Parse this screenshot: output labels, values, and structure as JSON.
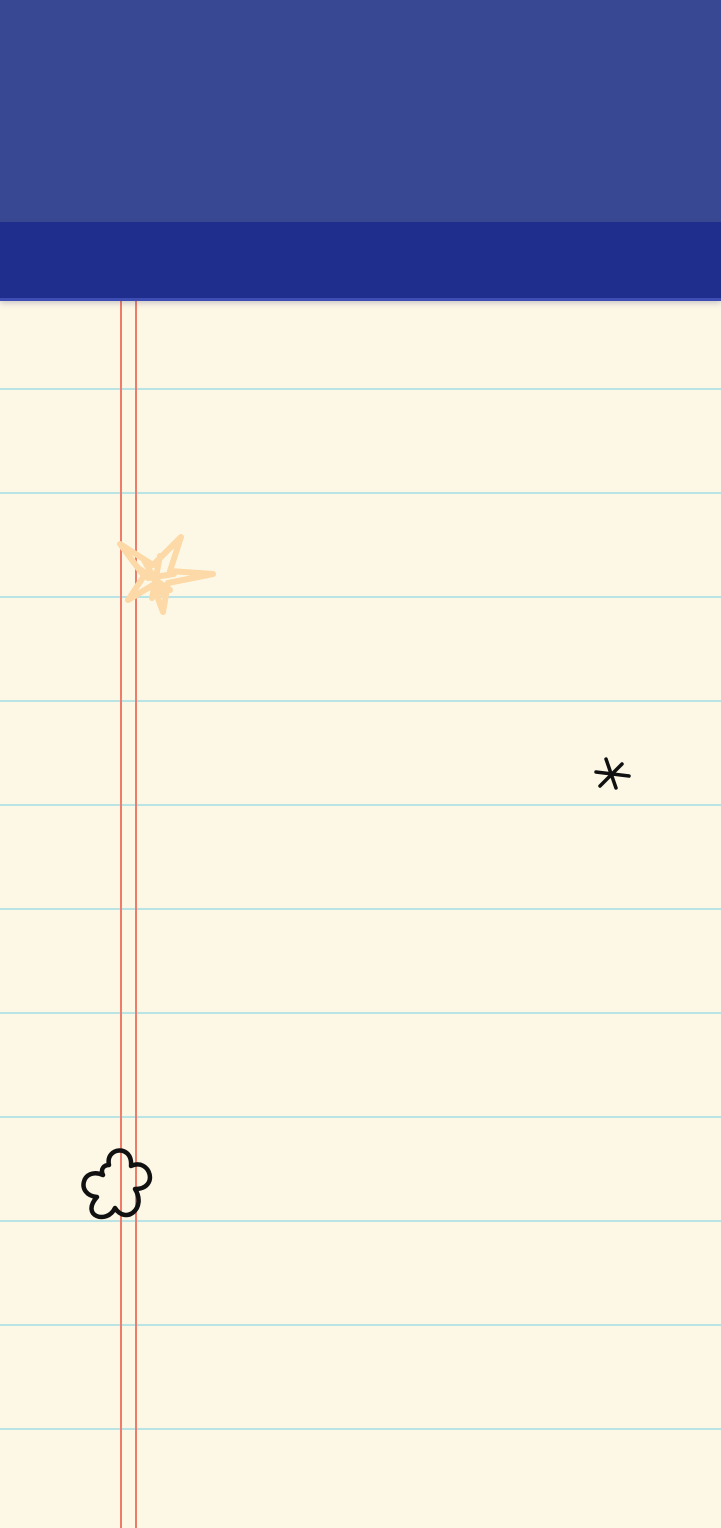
{
  "app": {
    "screen": "notepad-canvas",
    "header_color": "#1f2e8c",
    "status_color": "#394893",
    "paper_color": "#fdf8e6",
    "rule_color": "#b9e3e4",
    "margin_color": "#ef7c6a"
  },
  "doodles": {
    "star": "star-doodle-icon",
    "asterisk": "asterisk-doodle-icon",
    "flower": "flower-doodle-icon"
  }
}
